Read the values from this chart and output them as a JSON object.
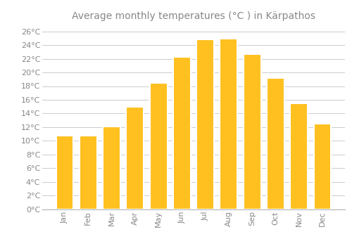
{
  "title": "Average monthly temperatures (°C ) in Kärpathos",
  "months": [
    "Jan",
    "Feb",
    "Mar",
    "Apr",
    "May",
    "Jun",
    "Jul",
    "Aug",
    "Sep",
    "Oct",
    "Nov",
    "Dec"
  ],
  "values": [
    10.7,
    10.8,
    12.1,
    15.0,
    18.5,
    22.3,
    24.8,
    24.9,
    22.7,
    19.2,
    15.5,
    12.5
  ],
  "bar_color": "#FFC020",
  "bar_edge_color": "#FFFFFF",
  "background_color": "#FFFFFF",
  "grid_color": "#CCCCCC",
  "ylim": [
    0,
    27
  ],
  "yticks": [
    0,
    2,
    4,
    6,
    8,
    10,
    12,
    14,
    16,
    18,
    20,
    22,
    24,
    26
  ],
  "title_fontsize": 10,
  "tick_fontsize": 8,
  "font_color": "#888888"
}
